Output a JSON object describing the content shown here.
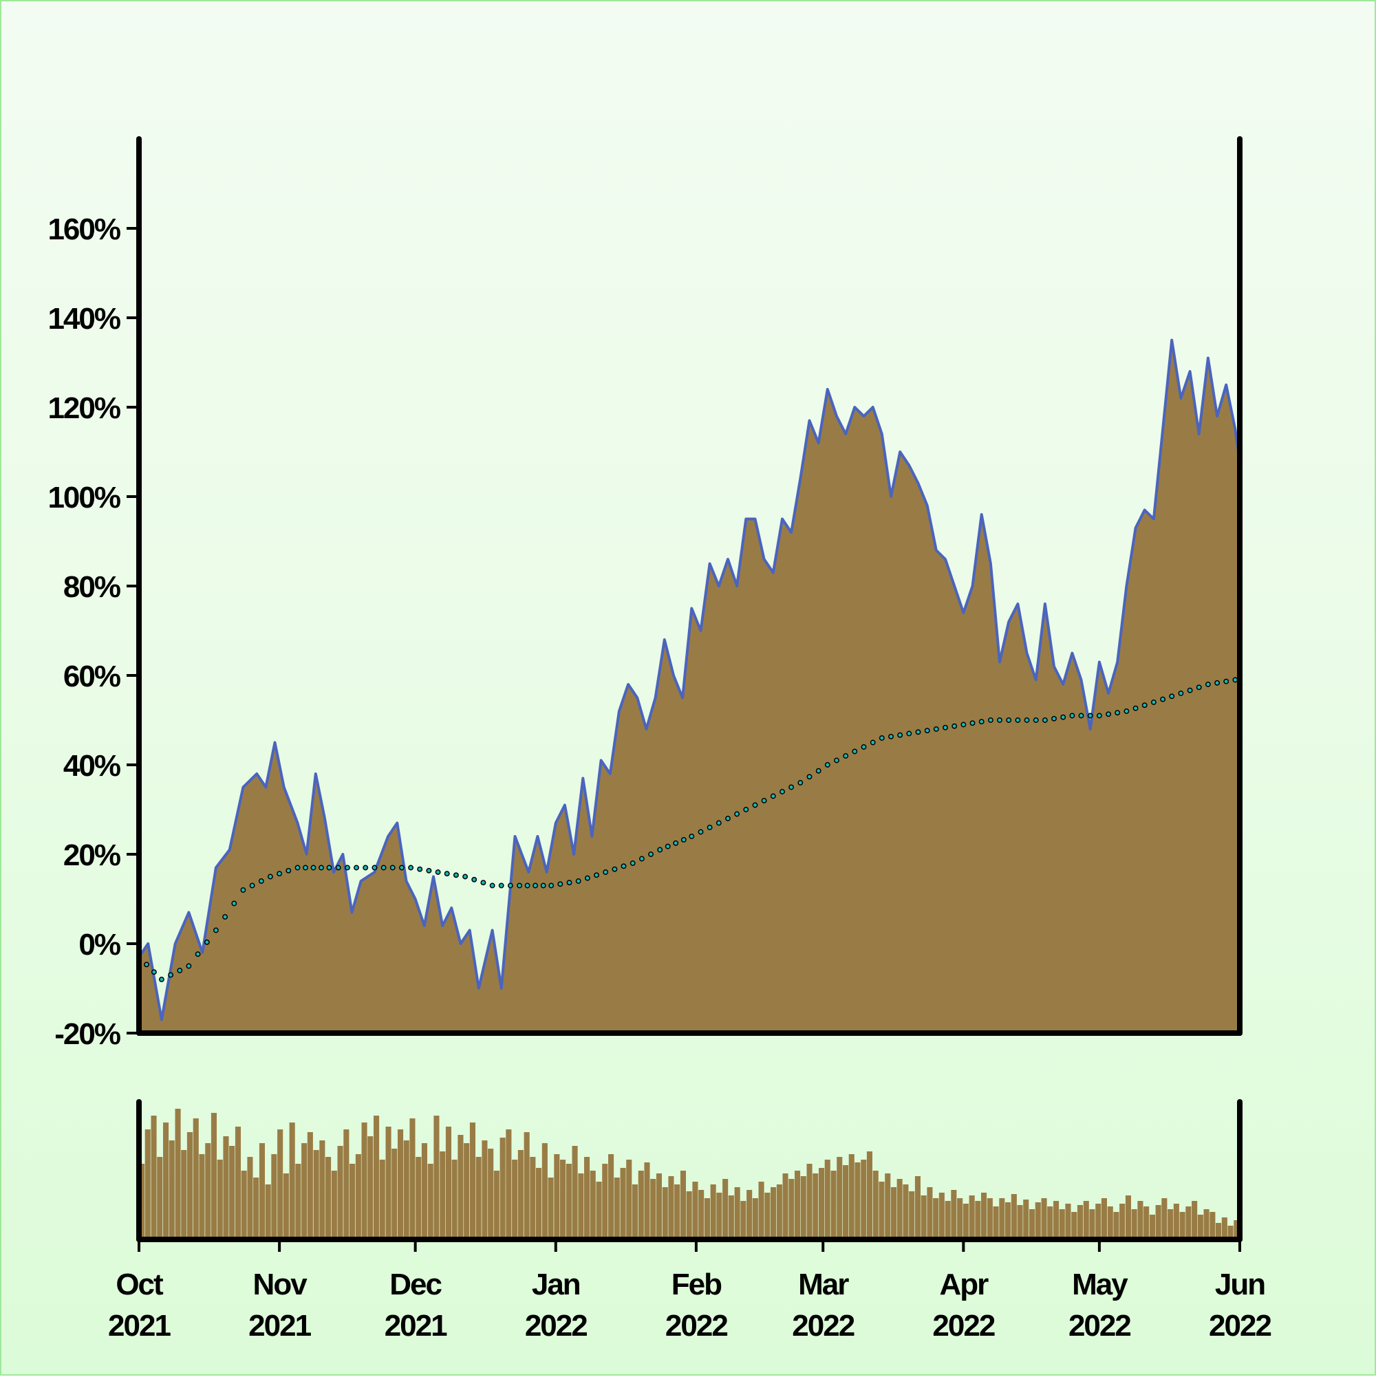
{
  "chart_data": {
    "type": "area",
    "x_range": [
      "2021-10-01",
      "2022-06-01"
    ],
    "y_ticks": [
      "-20%",
      "0%",
      "20%",
      "40%",
      "60%",
      "80%",
      "100%",
      "120%",
      "140%",
      "160%"
    ],
    "ylim": [
      -20,
      180
    ],
    "x_ticks": [
      {
        "month": "Oct",
        "year": "2021"
      },
      {
        "month": "Nov",
        "year": "2021"
      },
      {
        "month": "Dec",
        "year": "2021"
      },
      {
        "month": "Jan",
        "year": "2022"
      },
      {
        "month": "Feb",
        "year": "2022"
      },
      {
        "month": "Mar",
        "year": "2022"
      },
      {
        "month": "Apr",
        "year": "2022"
      },
      {
        "month": "May",
        "year": "2022"
      },
      {
        "month": "Jun",
        "year": "2022"
      }
    ],
    "grid": false,
    "series": [
      {
        "kind": "area",
        "color": "#4b64bd",
        "fill": "#997c45",
        "points": [
          [
            "2021-10-01",
            -3
          ],
          [
            "2021-10-03",
            0
          ],
          [
            "2021-10-06",
            -17
          ],
          [
            "2021-10-09",
            0
          ],
          [
            "2021-10-12",
            7
          ],
          [
            "2021-10-15",
            -2
          ],
          [
            "2021-10-18",
            17
          ],
          [
            "2021-10-21",
            21
          ],
          [
            "2021-10-24",
            35
          ],
          [
            "2021-10-27",
            38
          ],
          [
            "2021-10-29",
            35
          ],
          [
            "2021-10-31",
            45
          ],
          [
            "2021-11-02",
            35
          ],
          [
            "2021-11-05",
            27
          ],
          [
            "2021-11-07",
            20
          ],
          [
            "2021-11-09",
            38
          ],
          [
            "2021-11-11",
            28
          ],
          [
            "2021-11-13",
            16
          ],
          [
            "2021-11-15",
            20
          ],
          [
            "2021-11-17",
            7
          ],
          [
            "2021-11-19",
            14
          ],
          [
            "2021-11-22",
            16
          ],
          [
            "2021-11-25",
            24
          ],
          [
            "2021-11-27",
            27
          ],
          [
            "2021-11-29",
            14
          ],
          [
            "2021-12-01",
            10
          ],
          [
            "2021-12-03",
            4
          ],
          [
            "2021-12-05",
            15
          ],
          [
            "2021-12-07",
            4
          ],
          [
            "2021-12-09",
            8
          ],
          [
            "2021-12-11",
            0
          ],
          [
            "2021-12-13",
            3
          ],
          [
            "2021-12-15",
            -10
          ],
          [
            "2021-12-18",
            3
          ],
          [
            "2021-12-20",
            -10
          ],
          [
            "2021-12-23",
            24
          ],
          [
            "2021-12-26",
            16
          ],
          [
            "2021-12-28",
            24
          ],
          [
            "2021-12-30",
            16
          ],
          [
            "2022-01-01",
            27
          ],
          [
            "2022-01-03",
            31
          ],
          [
            "2022-01-05",
            20
          ],
          [
            "2022-01-07",
            37
          ],
          [
            "2022-01-09",
            24
          ],
          [
            "2022-01-11",
            41
          ],
          [
            "2022-01-13",
            38
          ],
          [
            "2022-01-15",
            52
          ],
          [
            "2022-01-17",
            58
          ],
          [
            "2022-01-19",
            55
          ],
          [
            "2022-01-21",
            48
          ],
          [
            "2022-01-23",
            55
          ],
          [
            "2022-01-25",
            68
          ],
          [
            "2022-01-27",
            60
          ],
          [
            "2022-01-29",
            55
          ],
          [
            "2022-01-31",
            75
          ],
          [
            "2022-02-02",
            70
          ],
          [
            "2022-02-04",
            85
          ],
          [
            "2022-02-06",
            80
          ],
          [
            "2022-02-08",
            86
          ],
          [
            "2022-02-10",
            80
          ],
          [
            "2022-02-12",
            95
          ],
          [
            "2022-02-14",
            95
          ],
          [
            "2022-02-16",
            86
          ],
          [
            "2022-02-18",
            83
          ],
          [
            "2022-02-20",
            95
          ],
          [
            "2022-02-22",
            92
          ],
          [
            "2022-02-24",
            104
          ],
          [
            "2022-02-26",
            117
          ],
          [
            "2022-02-28",
            112
          ],
          [
            "2022-03-02",
            124
          ],
          [
            "2022-03-04",
            118
          ],
          [
            "2022-03-06",
            114
          ],
          [
            "2022-03-08",
            120
          ],
          [
            "2022-03-10",
            118
          ],
          [
            "2022-03-12",
            120
          ],
          [
            "2022-03-14",
            114
          ],
          [
            "2022-03-16",
            100
          ],
          [
            "2022-03-18",
            110
          ],
          [
            "2022-03-20",
            107
          ],
          [
            "2022-03-22",
            103
          ],
          [
            "2022-03-24",
            98
          ],
          [
            "2022-03-26",
            88
          ],
          [
            "2022-03-28",
            86
          ],
          [
            "2022-03-30",
            80
          ],
          [
            "2022-04-01",
            74
          ],
          [
            "2022-04-03",
            80
          ],
          [
            "2022-04-05",
            96
          ],
          [
            "2022-04-07",
            85
          ],
          [
            "2022-04-09",
            63
          ],
          [
            "2022-04-11",
            72
          ],
          [
            "2022-04-13",
            76
          ],
          [
            "2022-04-15",
            65
          ],
          [
            "2022-04-17",
            59
          ],
          [
            "2022-04-19",
            76
          ],
          [
            "2022-04-21",
            62
          ],
          [
            "2022-04-23",
            58
          ],
          [
            "2022-04-25",
            65
          ],
          [
            "2022-04-27",
            59
          ],
          [
            "2022-04-29",
            48
          ],
          [
            "2022-05-01",
            63
          ],
          [
            "2022-05-03",
            56
          ],
          [
            "2022-05-05",
            63
          ],
          [
            "2022-05-07",
            80
          ],
          [
            "2022-05-09",
            93
          ],
          [
            "2022-05-11",
            97
          ],
          [
            "2022-05-13",
            95
          ],
          [
            "2022-05-15",
            115
          ],
          [
            "2022-05-17",
            135
          ],
          [
            "2022-05-19",
            122
          ],
          [
            "2022-05-21",
            128
          ],
          [
            "2022-05-23",
            114
          ],
          [
            "2022-05-25",
            131
          ],
          [
            "2022-05-27",
            118
          ],
          [
            "2022-05-29",
            125
          ],
          [
            "2022-05-31",
            115
          ],
          [
            "2022-06-02",
            108
          ]
        ]
      },
      {
        "kind": "dotted-trend",
        "color": "#19b7b7",
        "points": [
          [
            "2021-10-01",
            -3
          ],
          [
            "2021-10-06",
            -8
          ],
          [
            "2021-10-12",
            -5
          ],
          [
            "2021-10-18",
            3
          ],
          [
            "2021-10-24",
            12
          ],
          [
            "2021-10-30",
            15
          ],
          [
            "2021-11-05",
            17
          ],
          [
            "2021-11-12",
            17
          ],
          [
            "2021-11-18",
            17
          ],
          [
            "2021-11-24",
            17
          ],
          [
            "2021-11-30",
            17
          ],
          [
            "2021-12-06",
            16
          ],
          [
            "2021-12-12",
            15
          ],
          [
            "2021-12-18",
            13
          ],
          [
            "2021-12-24",
            13
          ],
          [
            "2021-12-31",
            13
          ],
          [
            "2022-01-06",
            14
          ],
          [
            "2022-01-12",
            16
          ],
          [
            "2022-01-18",
            18
          ],
          [
            "2022-01-24",
            21
          ],
          [
            "2022-01-31",
            24
          ],
          [
            "2022-02-06",
            27
          ],
          [
            "2022-02-12",
            30
          ],
          [
            "2022-02-18",
            33
          ],
          [
            "2022-02-24",
            36
          ],
          [
            "2022-03-02",
            40
          ],
          [
            "2022-03-08",
            43
          ],
          [
            "2022-03-14",
            46
          ],
          [
            "2022-03-20",
            47
          ],
          [
            "2022-03-26",
            48
          ],
          [
            "2022-04-01",
            49
          ],
          [
            "2022-04-07",
            50
          ],
          [
            "2022-04-13",
            50
          ],
          [
            "2022-04-19",
            50
          ],
          [
            "2022-04-25",
            51
          ],
          [
            "2022-05-01",
            51
          ],
          [
            "2022-05-07",
            52
          ],
          [
            "2022-05-13",
            54
          ],
          [
            "2022-05-19",
            56
          ],
          [
            "2022-05-25",
            58
          ],
          [
            "2022-05-31",
            59
          ],
          [
            "2022-06-01",
            60
          ]
        ]
      }
    ]
  },
  "volume_data": {
    "type": "bar",
    "color": "#997c45",
    "x_range": [
      "2021-10-01",
      "2022-06-01"
    ],
    "ylim": [
      0,
      1
    ],
    "values": [
      0.55,
      0.8,
      0.9,
      0.6,
      0.85,
      0.72,
      0.95,
      0.65,
      0.78,
      0.88,
      0.62,
      0.7,
      0.92,
      0.58,
      0.75,
      0.68,
      0.82,
      0.5,
      0.6,
      0.45,
      0.7,
      0.4,
      0.62,
      0.8,
      0.48,
      0.85,
      0.55,
      0.7,
      0.78,
      0.65,
      0.72,
      0.6,
      0.5,
      0.68,
      0.8,
      0.55,
      0.62,
      0.85,
      0.75,
      0.9,
      0.58,
      0.82,
      0.66,
      0.8,
      0.72,
      0.88,
      0.6,
      0.7,
      0.55,
      0.9,
      0.64,
      0.82,
      0.58,
      0.76,
      0.7,
      0.85,
      0.6,
      0.72,
      0.66,
      0.5,
      0.74,
      0.8,
      0.58,
      0.65,
      0.78,
      0.6,
      0.52,
      0.7,
      0.45,
      0.62,
      0.58,
      0.55,
      0.68,
      0.48,
      0.6,
      0.5,
      0.42,
      0.55,
      0.62,
      0.45,
      0.52,
      0.58,
      0.4,
      0.5,
      0.56,
      0.44,
      0.48,
      0.38,
      0.46,
      0.4,
      0.5,
      0.35,
      0.42,
      0.36,
      0.3,
      0.4,
      0.34,
      0.44,
      0.32,
      0.38,
      0.28,
      0.36,
      0.3,
      0.42,
      0.34,
      0.38,
      0.4,
      0.48,
      0.44,
      0.5,
      0.46,
      0.55,
      0.48,
      0.52,
      0.58,
      0.5,
      0.6,
      0.54,
      0.62,
      0.56,
      0.58,
      0.64,
      0.5,
      0.42,
      0.48,
      0.38,
      0.44,
      0.4,
      0.35,
      0.46,
      0.32,
      0.38,
      0.3,
      0.34,
      0.28,
      0.36,
      0.3,
      0.26,
      0.32,
      0.28,
      0.34,
      0.3,
      0.24,
      0.3,
      0.27,
      0.33,
      0.25,
      0.29,
      0.22,
      0.27,
      0.3,
      0.24,
      0.28,
      0.22,
      0.26,
      0.2,
      0.25,
      0.28,
      0.22,
      0.26,
      0.3,
      0.24,
      0.2,
      0.26,
      0.32,
      0.22,
      0.28,
      0.24,
      0.18,
      0.25,
      0.3,
      0.22,
      0.26,
      0.2,
      0.24,
      0.28,
      0.18,
      0.22,
      0.2,
      0.12,
      0.16,
      0.1,
      0.14
    ]
  }
}
